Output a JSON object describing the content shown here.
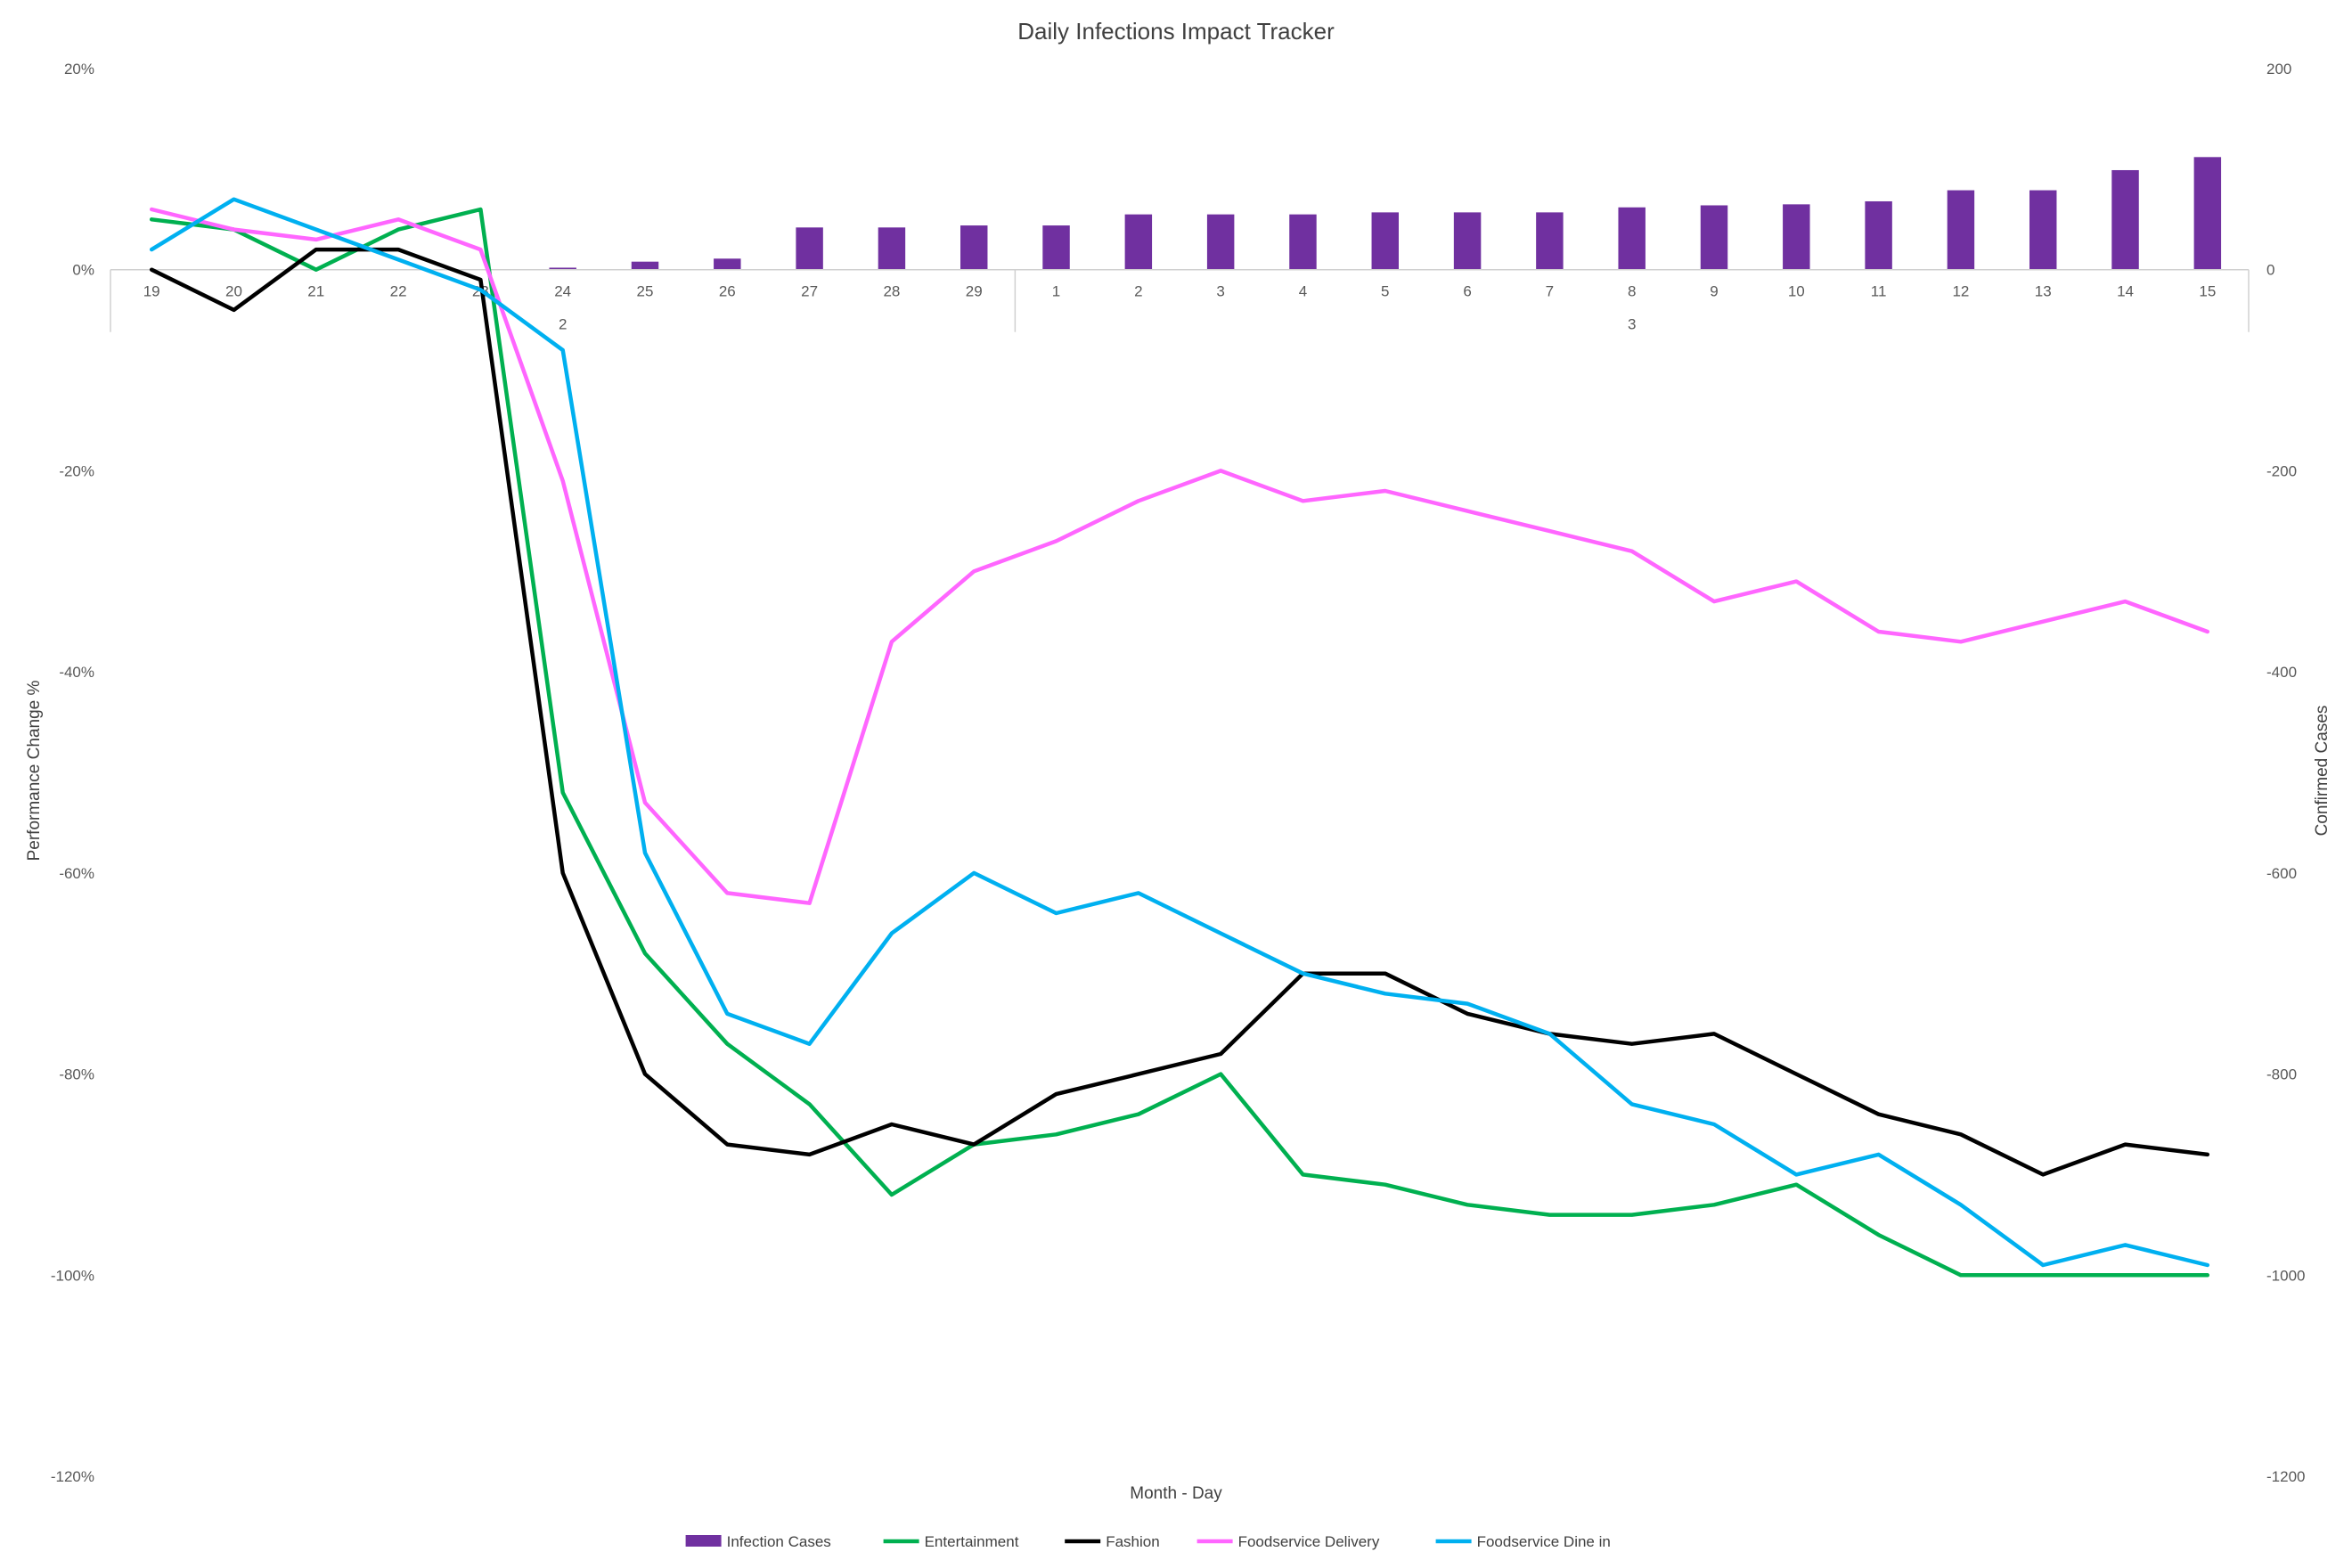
{
  "chart_data": {
    "type": "bar+line",
    "title": "Daily Infections Impact Tracker",
    "xlabel": "Month - Day",
    "ylabel": "Performance Change %",
    "ylabel_right": "Confirmed Cases",
    "ylim": [
      -1.2,
      0.2
    ],
    "ylim_right": [
      -1200,
      200
    ],
    "y_ticks": [
      "20%",
      "0%",
      "-20%",
      "-40%",
      "-60%",
      "-80%",
      "-100%",
      "-120%"
    ],
    "y_ticks_right": [
      "200",
      "0",
      "-200",
      "-400",
      "-600",
      "-800",
      "-1000",
      "-1200"
    ],
    "categories": [
      "19",
      "20",
      "21",
      "22",
      "23",
      "24",
      "25",
      "26",
      "27",
      "28",
      "29",
      "1",
      "2",
      "3",
      "4",
      "5",
      "6",
      "7",
      "8",
      "9",
      "10",
      "11",
      "12",
      "13",
      "14",
      "15"
    ],
    "month_groups": [
      {
        "label": "2",
        "count": 11
      },
      {
        "label": "3",
        "count": 15
      }
    ],
    "colors": {
      "infection": "#7030A0",
      "entertainment": "#00B050",
      "fashion": "#000000",
      "delivery": "#FF66FF",
      "dinein": "#00B0F0"
    },
    "series": [
      {
        "name": "Infection Cases",
        "type": "bar",
        "axis": "right",
        "values": [
          0,
          0,
          0,
          0,
          0,
          2,
          8,
          11,
          42,
          42,
          44,
          44,
          55,
          55,
          55,
          57,
          57,
          57,
          62,
          64,
          65,
          68,
          79,
          79,
          99,
          112
        ]
      },
      {
        "name": "Entertainment",
        "type": "line",
        "axis": "left",
        "values": [
          0.05,
          0.04,
          0.0,
          0.04,
          0.06,
          -0.52,
          -0.68,
          -0.77,
          -0.83,
          -0.92,
          -0.87,
          -0.86,
          -0.84,
          -0.8,
          -0.9,
          -0.91,
          -0.93,
          -0.94,
          -0.94,
          -0.93,
          -0.91,
          -0.96,
          -1.0,
          -1.0,
          -1.0,
          -1.0
        ]
      },
      {
        "name": "Fashion",
        "type": "line",
        "axis": "left",
        "values": [
          0.0,
          -0.04,
          0.02,
          0.02,
          -0.01,
          -0.6,
          -0.8,
          -0.87,
          -0.88,
          -0.85,
          -0.87,
          -0.82,
          -0.8,
          -0.78,
          -0.7,
          -0.7,
          -0.74,
          -0.76,
          -0.77,
          -0.76,
          -0.8,
          -0.84,
          -0.86,
          -0.9,
          -0.87,
          -0.88
        ]
      },
      {
        "name": "Foodservice Delivery",
        "type": "line",
        "axis": "left",
        "values": [
          0.06,
          0.04,
          0.03,
          0.05,
          0.02,
          -0.21,
          -0.53,
          -0.62,
          -0.63,
          -0.37,
          -0.3,
          -0.27,
          -0.23,
          -0.2,
          -0.23,
          -0.22,
          -0.24,
          -0.26,
          -0.28,
          -0.33,
          -0.31,
          -0.36,
          -0.37,
          -0.35,
          -0.33,
          -0.36
        ]
      },
      {
        "name": "Foodservice Dine in",
        "type": "line",
        "axis": "left",
        "values": [
          0.02,
          0.07,
          0.04,
          0.01,
          -0.02,
          -0.08,
          -0.58,
          -0.74,
          -0.77,
          -0.66,
          -0.6,
          -0.64,
          -0.62,
          -0.66,
          -0.7,
          -0.72,
          -0.73,
          -0.76,
          -0.83,
          -0.85,
          -0.9,
          -0.88,
          -0.93,
          -0.99,
          -0.97,
          -0.99
        ]
      }
    ],
    "legend": {
      "position": "bottom",
      "items": [
        {
          "label": "Infection Cases",
          "color_key": "infection",
          "kind": "bar"
        },
        {
          "label": "Entertainment",
          "color_key": "entertainment",
          "kind": "line"
        },
        {
          "label": "Fashion",
          "color_key": "fashion",
          "kind": "line"
        },
        {
          "label": "Foodservice Delivery",
          "color_key": "delivery",
          "kind": "line"
        },
        {
          "label": "Foodservice Dine in",
          "color_key": "dinein",
          "kind": "line"
        }
      ]
    }
  }
}
